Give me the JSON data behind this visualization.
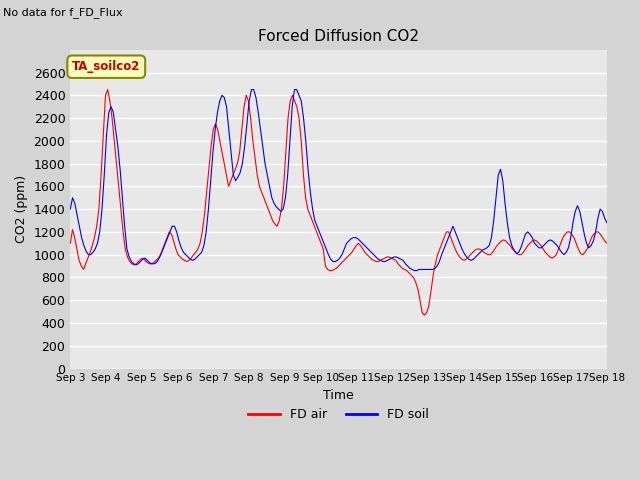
{
  "title": "Forced Diffusion CO2",
  "subtitle": "No data for f_FD_Flux",
  "ylabel": "CO2 (ppm)",
  "xlabel": "Time",
  "annotation": "TA_soilco2",
  "ylim": [
    0,
    2800
  ],
  "yticks": [
    0,
    200,
    400,
    600,
    800,
    1000,
    1200,
    1400,
    1600,
    1800,
    2000,
    2200,
    2400,
    2600
  ],
  "legend_labels": [
    "FD air",
    "FD soil"
  ],
  "legend_colors": [
    "red",
    "blue"
  ],
  "fig_facecolor": "#d4d4d4",
  "axes_facecolor": "#e8e8e8",
  "grid_color": "#ffffff",
  "start_day": 3,
  "end_day": 18,
  "fd_air": [
    1100,
    1220,
    1150,
    1050,
    950,
    900,
    870,
    920,
    970,
    1020,
    1080,
    1150,
    1250,
    1400,
    1700,
    2050,
    2400,
    2450,
    2350,
    2200,
    2000,
    1800,
    1600,
    1400,
    1200,
    1050,
    980,
    940,
    920,
    910,
    920,
    940,
    960,
    970,
    950,
    930,
    920,
    920,
    930,
    950,
    970,
    1000,
    1050,
    1100,
    1150,
    1200,
    1180,
    1120,
    1050,
    1000,
    980,
    960,
    950,
    940,
    950,
    970,
    1000,
    1020,
    1050,
    1100,
    1200,
    1350,
    1550,
    1750,
    1950,
    2100,
    2150,
    2100,
    2000,
    1900,
    1800,
    1700,
    1600,
    1650,
    1700,
    1750,
    1800,
    1900,
    2100,
    2300,
    2400,
    2350,
    2200,
    2000,
    1850,
    1700,
    1600,
    1550,
    1500,
    1450,
    1400,
    1350,
    1300,
    1270,
    1250,
    1300,
    1400,
    1600,
    1900,
    2200,
    2350,
    2400,
    2350,
    2300,
    2200,
    2000,
    1700,
    1500,
    1400,
    1350,
    1300,
    1250,
    1200,
    1150,
    1100,
    1050,
    900,
    870,
    860,
    860,
    870,
    880,
    900,
    920,
    940,
    960,
    980,
    1000,
    1020,
    1050,
    1080,
    1100,
    1080,
    1050,
    1020,
    1000,
    980,
    960,
    950,
    940,
    940,
    950,
    960,
    970,
    980,
    980,
    970,
    960,
    950,
    920,
    900,
    880,
    870,
    860,
    840,
    820,
    800,
    760,
    700,
    600,
    490,
    470,
    490,
    550,
    680,
    820,
    920,
    1000,
    1050,
    1100,
    1150,
    1200,
    1200,
    1150,
    1100,
    1050,
    1010,
    980,
    960,
    950,
    960,
    980,
    1000,
    1020,
    1040,
    1050,
    1050,
    1040,
    1020,
    1010,
    1000,
    1000,
    1020,
    1050,
    1080,
    1100,
    1120,
    1130,
    1120,
    1100,
    1080,
    1050,
    1030,
    1010,
    1000,
    1000,
    1020,
    1050,
    1080,
    1100,
    1120,
    1130,
    1120,
    1100,
    1080,
    1050,
    1020,
    1000,
    980,
    970,
    980,
    1000,
    1050,
    1100,
    1150,
    1180,
    1200,
    1200,
    1180,
    1150,
    1100,
    1050,
    1010,
    1000,
    1020,
    1050,
    1100,
    1150,
    1180,
    1200,
    1200,
    1180,
    1150,
    1120,
    1100
  ],
  "fd_soil": [
    1400,
    1500,
    1450,
    1350,
    1250,
    1150,
    1080,
    1030,
    1000,
    1000,
    1020,
    1050,
    1100,
    1200,
    1400,
    1700,
    2050,
    2250,
    2300,
    2250,
    2100,
    1950,
    1750,
    1500,
    1250,
    1050,
    980,
    940,
    920,
    910,
    920,
    940,
    960,
    970,
    950,
    930,
    920,
    920,
    930,
    960,
    1000,
    1050,
    1100,
    1150,
    1200,
    1250,
    1250,
    1200,
    1120,
    1060,
    1020,
    1000,
    980,
    960,
    950,
    960,
    980,
    1000,
    1020,
    1080,
    1200,
    1400,
    1650,
    1900,
    2100,
    2250,
    2350,
    2400,
    2380,
    2300,
    2100,
    1900,
    1700,
    1650,
    1680,
    1720,
    1800,
    1950,
    2150,
    2350,
    2450,
    2450,
    2380,
    2250,
    2100,
    1950,
    1800,
    1700,
    1600,
    1500,
    1450,
    1420,
    1400,
    1380,
    1400,
    1500,
    1700,
    2000,
    2300,
    2450,
    2450,
    2400,
    2350,
    2200,
    2000,
    1750,
    1550,
    1400,
    1300,
    1250,
    1200,
    1150,
    1100,
    1050,
    1000,
    960,
    940,
    940,
    950,
    970,
    1000,
    1050,
    1100,
    1120,
    1140,
    1150,
    1150,
    1140,
    1120,
    1100,
    1080,
    1060,
    1040,
    1020,
    1000,
    980,
    960,
    950,
    940,
    940,
    950,
    960,
    970,
    980,
    980,
    970,
    960,
    950,
    920,
    900,
    880,
    870,
    860,
    860,
    870,
    870,
    870,
    870,
    870,
    870,
    870,
    880,
    900,
    940,
    1000,
    1050,
    1100,
    1150,
    1200,
    1250,
    1200,
    1150,
    1100,
    1050,
    1010,
    980,
    960,
    950,
    960,
    980,
    1000,
    1020,
    1040,
    1050,
    1060,
    1080,
    1150,
    1300,
    1500,
    1700,
    1750,
    1650,
    1450,
    1280,
    1150,
    1080,
    1040,
    1010,
    1020,
    1060,
    1120,
    1180,
    1200,
    1180,
    1150,
    1100,
    1080,
    1060,
    1060,
    1080,
    1100,
    1120,
    1130,
    1120,
    1100,
    1080,
    1050,
    1020,
    1000,
    1020,
    1060,
    1150,
    1280,
    1380,
    1430,
    1380,
    1280,
    1180,
    1100,
    1060,
    1080,
    1120,
    1200,
    1320,
    1400,
    1380,
    1320,
    1280
  ]
}
